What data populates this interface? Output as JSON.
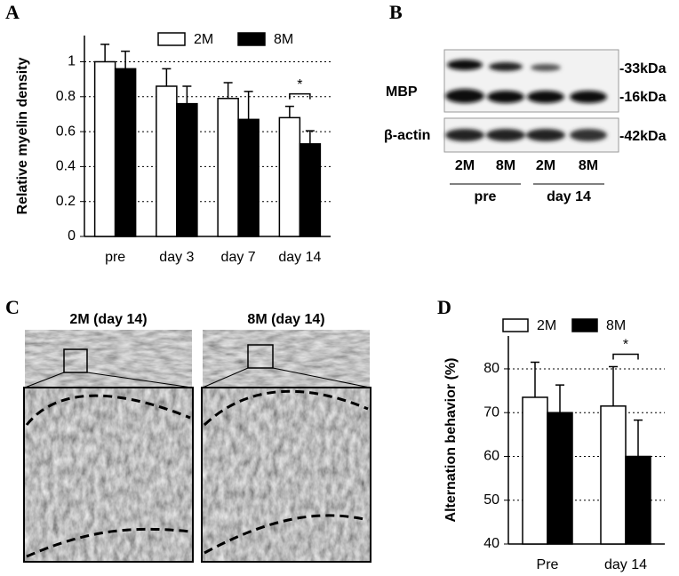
{
  "panel_labels": [
    "A",
    "B",
    "C",
    "D"
  ],
  "chart_data": [
    {
      "type": "bar",
      "ylabel": "Relative myelin density",
      "categories": [
        "pre",
        "day 3",
        "day 7",
        "day 14"
      ],
      "series": [
        {
          "name": "2M",
          "color": "#ffffff",
          "values": [
            1.0,
            0.86,
            0.79,
            0.68
          ],
          "errors": [
            0.1,
            0.1,
            0.09,
            0.065
          ]
        },
        {
          "name": "8M",
          "color": "#000000",
          "values": [
            0.96,
            0.76,
            0.67,
            0.53
          ],
          "errors": [
            0.1,
            0.1,
            0.16,
            0.075
          ]
        }
      ],
      "ylim": [
        0,
        1.15
      ],
      "yticks": [
        0,
        0.2,
        0.4,
        0.6,
        0.8,
        1
      ],
      "grid": true,
      "legend": "top",
      "annotation": "*"
    },
    {
      "type": "bar",
      "ylabel": "Alternation behavior (%)",
      "categories": [
        "Pre",
        "day 14"
      ],
      "series": [
        {
          "name": "2M",
          "color": "#ffffff",
          "values": [
            73.5,
            71.5
          ],
          "errors": [
            8,
            9
          ]
        },
        {
          "name": "8M",
          "color": "#000000",
          "values": [
            70,
            60
          ],
          "errors": [
            6.3,
            8.3
          ]
        }
      ],
      "ylim": [
        40,
        87.5
      ],
      "yticks": [
        40,
        50,
        60,
        70,
        80
      ],
      "grid": true,
      "legend": "top",
      "annotation": "*"
    }
  ],
  "blot": {
    "rows": [
      "MBP",
      "β-actin"
    ],
    "sizes": [
      "-33kDa",
      "-16kDa",
      "-42kDa"
    ],
    "lanes": [
      "2M",
      "8M",
      "2M",
      "8M"
    ],
    "groups": [
      "pre",
      "day 14"
    ]
  },
  "images": {
    "titles": [
      "2M (day 14)",
      "8M (day 14)"
    ]
  }
}
